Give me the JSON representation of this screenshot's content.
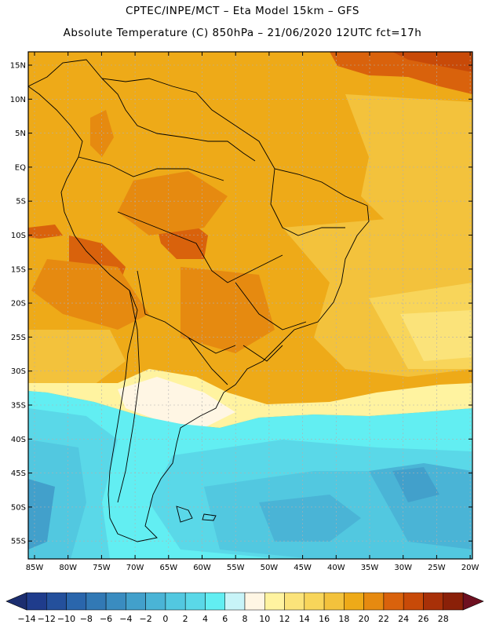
{
  "title": {
    "line1": "CPTEC/INPE/MCT –  Eta Model 15km – GFS",
    "line2": "Absolute Temperature (C) 850hPa – 21/06/2020 12UTC fct=17h"
  },
  "axes": {
    "lat_labels": [
      "15N",
      "10N",
      "5N",
      "EQ",
      "5S",
      "10S",
      "15S",
      "20S",
      "25S",
      "30S",
      "35S",
      "40S",
      "45S",
      "50S",
      "55S"
    ],
    "lon_labels": [
      "85W",
      "80W",
      "75W",
      "70W",
      "65W",
      "60W",
      "55W",
      "50W",
      "45W",
      "40W",
      "35W",
      "30W",
      "25W",
      "20W"
    ]
  },
  "colorbar": {
    "labels": [
      "-14",
      "-12",
      "-10",
      "-8",
      "-6",
      "-4",
      "-2",
      "0",
      "2",
      "4",
      "6",
      "8",
      "10",
      "12",
      "14",
      "16",
      "18",
      "20",
      "22",
      "24",
      "26",
      "28"
    ],
    "colors": [
      "#1f3c8c",
      "#24509c",
      "#2a66ac",
      "#3279b5",
      "#3a8cc0",
      "#42a0cb",
      "#4ab4d6",
      "#52c8e0",
      "#5ad8e8",
      "#62eef2",
      "#c8f4f8",
      "#fff6e4",
      "#fff3a0",
      "#fbe37a",
      "#f8d55a",
      "#f3c23c",
      "#eeaa18",
      "#e68a10",
      "#d9620c",
      "#c84a08",
      "#a83008",
      "#8a2008"
    ],
    "left_arrow_color": "#1c2e70",
    "right_arrow_color": "#6e1020"
  },
  "colors": {
    "frame": "#000000",
    "grid": "#b0b0b0",
    "coast": "#000000"
  }
}
